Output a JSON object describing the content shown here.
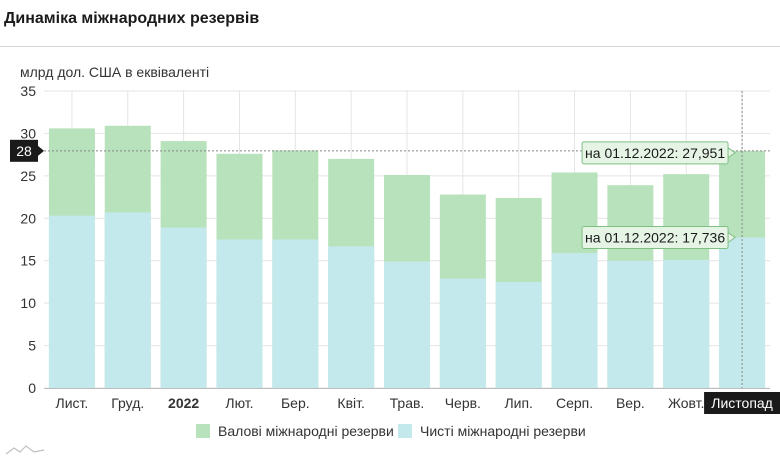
{
  "page": {
    "title": "Динаміка міжнародних резервів",
    "unit_label": "млрд дол. США в еквіваленті"
  },
  "colors": {
    "gross": "#b8e2bb",
    "net": "#c3e9ec",
    "grid": "#e4e4e4",
    "badge": "#1a1a1a",
    "tooltip_bg": "#e6f4e6",
    "tooltip_border": "#7fbf84"
  },
  "legend": {
    "gross": "Валові міжнародні резерви",
    "net": "Чисті міжнародні резерви"
  },
  "crosshair": {
    "y_label": "28",
    "x_label": "Листопад",
    "gross_tooltip": "на 01.12.2022: 27,951",
    "net_tooltip": "на 01.12.2022: 17,736"
  },
  "chart_data": {
    "type": "bar",
    "ylim": [
      0,
      35
    ],
    "yticks": [
      "0",
      "5",
      "10",
      "15",
      "20",
      "25",
      "30",
      "35"
    ],
    "grid": true,
    "legend_position": "bottom",
    "categories": [
      "Лист.",
      "Груд.",
      "2022",
      "Лют.",
      "Бер.",
      "Квіт.",
      "Трав.",
      "Черв.",
      "Лип.",
      "Серп.",
      "Вер.",
      "Жовт.",
      "Листопад"
    ],
    "bold_categories": [
      "2022"
    ],
    "series": [
      {
        "name": "Валові міжнародні резерви",
        "values": [
          30.6,
          30.9,
          29.1,
          27.6,
          28.0,
          27.0,
          25.1,
          22.8,
          22.4,
          25.4,
          23.9,
          25.2,
          27.951
        ]
      },
      {
        "name": "Чисті міжнародні резерви",
        "values": [
          20.3,
          20.7,
          18.9,
          17.5,
          17.5,
          16.7,
          14.9,
          12.9,
          12.5,
          15.9,
          15.0,
          15.1,
          17.736
        ]
      }
    ]
  }
}
